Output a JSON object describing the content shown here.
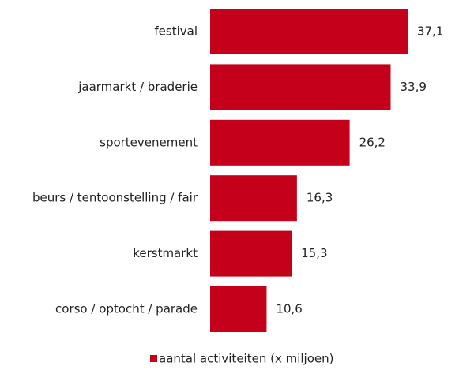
{
  "chart_data": {
    "type": "bar",
    "orientation": "horizontal",
    "categories": [
      "festival",
      "jaarmarkt / braderie",
      "sportevenement",
      "beurs / tentoonstelling / fair",
      "kerstmarkt",
      "corso / optocht / parade"
    ],
    "series": [
      {
        "name": "aantal activiteiten (x miljoen)",
        "color": "#c4001a",
        "values": [
          37.1,
          33.9,
          26.2,
          16.3,
          15.3,
          10.6
        ],
        "value_labels": [
          "37,1",
          "33,9",
          "26,2",
          "16,3",
          "15,3",
          "10,6"
        ]
      }
    ],
    "legend": "bottom"
  }
}
